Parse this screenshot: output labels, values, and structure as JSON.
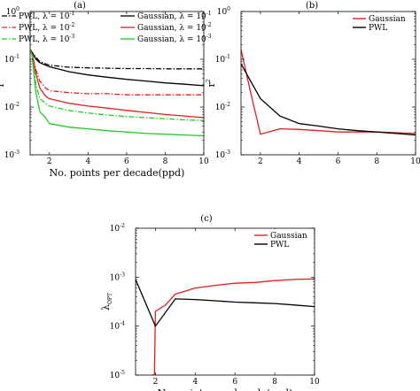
{
  "chart_data": [
    {
      "panel_label": "(a)",
      "type": "line",
      "xlabel": "No. points per decade(ppd)",
      "ylabel_base": "r",
      "ylabel_exp": "2",
      "xlim": [
        1,
        10
      ],
      "ylim": [
        0.001,
        1
      ],
      "yscale": "log",
      "xticks": [
        2,
        4,
        6,
        8,
        10
      ],
      "yticks": [
        {
          "base": "10",
          "exp": "-3"
        },
        {
          "base": "10",
          "exp": "-2"
        },
        {
          "base": "10",
          "exp": "-1"
        },
        {
          "base": "10",
          "exp": "0"
        }
      ],
      "legend_location": "top",
      "series": [
        {
          "name_main": "PWL, λ = 10",
          "name_exp": "-1",
          "color": "#000000",
          "style": "dashdot",
          "x": [
            1,
            1.1,
            1.3,
            1.5,
            1.8,
            2,
            3,
            4,
            5,
            6,
            7,
            8,
            9,
            10
          ],
          "y": [
            0.16,
            0.14,
            0.11,
            0.09,
            0.08,
            0.075,
            0.068,
            0.066,
            0.065,
            0.064,
            0.064,
            0.063,
            0.063,
            0.063
          ]
        },
        {
          "name_main": "PWL, λ = 10",
          "name_exp": "-2",
          "color": "#e02020",
          "style": "dashdot",
          "x": [
            1,
            1.1,
            1.3,
            1.5,
            1.8,
            2,
            3,
            4,
            5,
            6,
            7,
            8,
            9,
            10
          ],
          "y": [
            0.16,
            0.13,
            0.06,
            0.035,
            0.025,
            0.022,
            0.02,
            0.019,
            0.019,
            0.018,
            0.018,
            0.018,
            0.018,
            0.018
          ]
        },
        {
          "name_main": "PWL, λ = 10",
          "name_exp": "-3",
          "color": "#22cc22",
          "style": "dashdot",
          "x": [
            1,
            1.1,
            1.3,
            1.5,
            1.8,
            2,
            3,
            4,
            5,
            6,
            7,
            8,
            9,
            10
          ],
          "y": [
            0.16,
            0.12,
            0.03,
            0.015,
            0.012,
            0.0105,
            0.0085,
            0.0075,
            0.0068,
            0.0063,
            0.006,
            0.0057,
            0.0054,
            0.0052
          ]
        },
        {
          "name_main": "Gaussian, λ = 10",
          "name_exp": "-1",
          "color": "#000000",
          "style": "solid",
          "x": [
            1,
            1.1,
            1.3,
            1.5,
            1.8,
            2,
            3,
            4,
            5,
            6,
            7,
            8,
            9,
            10
          ],
          "y": [
            0.16,
            0.14,
            0.1,
            0.085,
            0.075,
            0.07,
            0.055,
            0.047,
            0.042,
            0.038,
            0.035,
            0.032,
            0.03,
            0.028
          ]
        },
        {
          "name_main": "Gaussian, λ = 10",
          "name_exp": "-2",
          "color": "#e02020",
          "style": "solid",
          "x": [
            1,
            1.1,
            1.3,
            1.5,
            1.8,
            2,
            3,
            4,
            5,
            6,
            7,
            8,
            9,
            10
          ],
          "y": [
            0.16,
            0.13,
            0.05,
            0.025,
            0.017,
            0.015,
            0.012,
            0.0105,
            0.0095,
            0.0085,
            0.0077,
            0.007,
            0.0065,
            0.006
          ]
        },
        {
          "name_main": "Gaussian, λ = 10",
          "name_exp": "-3",
          "color": "#22cc22",
          "style": "solid",
          "x": [
            1,
            1.1,
            1.3,
            1.5,
            1.8,
            2,
            3,
            4,
            5,
            6,
            7,
            8,
            9,
            10
          ],
          "y": [
            0.16,
            0.12,
            0.02,
            0.008,
            0.006,
            0.0045,
            0.0038,
            0.0035,
            0.0032,
            0.003,
            0.0028,
            0.0027,
            0.0026,
            0.0025
          ]
        }
      ]
    },
    {
      "panel_label": "(b)",
      "type": "line",
      "xlabel": "",
      "ylabel_base": "r",
      "ylabel_exp": "2",
      "xlim": [
        1,
        10
      ],
      "ylim": [
        0.001,
        1
      ],
      "yscale": "log",
      "xticks": [
        2,
        4,
        6,
        8,
        10
      ],
      "yticks": [
        {
          "base": "10",
          "exp": "-3"
        },
        {
          "base": "10",
          "exp": "-2"
        },
        {
          "base": "10",
          "exp": "-1"
        },
        {
          "base": "10",
          "exp": "0"
        }
      ],
      "legend_location": "top-right",
      "series": [
        {
          "name_main": "Gaussian",
          "name_exp": "",
          "color": "#e02020",
          "style": "solid",
          "x": [
            1,
            1.5,
            2,
            3,
            4,
            5,
            6,
            7,
            8,
            9,
            10
          ],
          "y": [
            0.16,
            0.02,
            0.0027,
            0.0035,
            0.0034,
            0.0032,
            0.003,
            0.003,
            0.003,
            0.0029,
            0.0028
          ]
        },
        {
          "name_main": "PWL",
          "name_exp": "",
          "color": "#000000",
          "style": "solid",
          "x": [
            1,
            2,
            3,
            4,
            5,
            6,
            7,
            8,
            9,
            10
          ],
          "y": [
            0.08,
            0.015,
            0.0065,
            0.0045,
            0.004,
            0.0035,
            0.0032,
            0.003,
            0.0028,
            0.0026
          ]
        }
      ]
    },
    {
      "panel_label": "(c)",
      "type": "line",
      "xlabel": "No. points per decade(ppd)",
      "ylabel_base": "λ",
      "ylabel_sub": "OPT",
      "xlim": [
        1,
        10
      ],
      "ylim": [
        1e-05,
        0.01
      ],
      "yscale": "log",
      "xticks": [
        2,
        4,
        6,
        8,
        10
      ],
      "yticks": [
        {
          "base": "10",
          "exp": "-5"
        },
        {
          "base": "10",
          "exp": "-4"
        },
        {
          "base": "10",
          "exp": "-3"
        },
        {
          "base": "10",
          "exp": "-2"
        }
      ],
      "legend_location": "top-right",
      "series": [
        {
          "name_main": "Gaussian",
          "name_exp": "",
          "color": "#e02020",
          "style": "solid",
          "x": [
            1.8,
            1.95,
            2,
            2.5,
            3,
            4,
            5,
            6,
            7,
            8,
            9,
            10
          ],
          "y": [
            1e-05,
            1e-05,
            0.0002,
            0.00027,
            0.00045,
            0.0006,
            0.00068,
            0.00075,
            0.00078,
            0.00085,
            0.0009,
            0.00092
          ]
        },
        {
          "name_main": "PWL",
          "name_exp": "",
          "color": "#000000",
          "style": "solid",
          "x": [
            1,
            2,
            3,
            4,
            5,
            6,
            7,
            8,
            9,
            10
          ],
          "y": [
            0.0009,
            0.0001,
            0.00036,
            0.00035,
            0.00033,
            0.00031,
            0.0003,
            0.00029,
            0.00027,
            0.00025
          ]
        }
      ]
    }
  ]
}
